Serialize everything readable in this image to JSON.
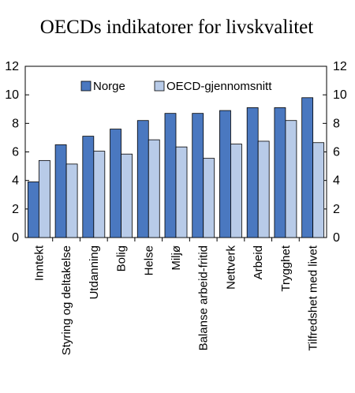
{
  "chart_data": {
    "type": "bar",
    "title": "OECDs indikatorer for livskvalitet",
    "categories": [
      "Inntekt",
      "Styring og deltakelse",
      "Utdanning",
      "Bolig",
      "Helse",
      "Miljø",
      "Balanse arbeid-fritid",
      "Nettverk",
      "Arbeid",
      "Trygghet",
      "Tilfredshet med livet"
    ],
    "series": [
      {
        "name": "Norge",
        "color": "#4a78c0",
        "values": [
          3.9,
          6.5,
          7.1,
          7.6,
          8.2,
          8.7,
          8.7,
          8.9,
          9.1,
          9.1,
          9.8
        ]
      },
      {
        "name": "OECD-gjennomsnitt",
        "color": "#b8cbe8",
        "values": [
          5.4,
          5.15,
          6.05,
          5.85,
          6.85,
          6.35,
          5.55,
          6.55,
          6.75,
          8.2,
          6.65
        ]
      }
    ],
    "ylim": [
      0,
      12
    ],
    "yticks": [
      0,
      2,
      4,
      6,
      8,
      10,
      12
    ],
    "ytick_labels": [
      "0",
      "2",
      "4",
      "6",
      "8",
      "10",
      "12"
    ],
    "secondary_axis": true,
    "legend": "top-center",
    "grid": false
  }
}
